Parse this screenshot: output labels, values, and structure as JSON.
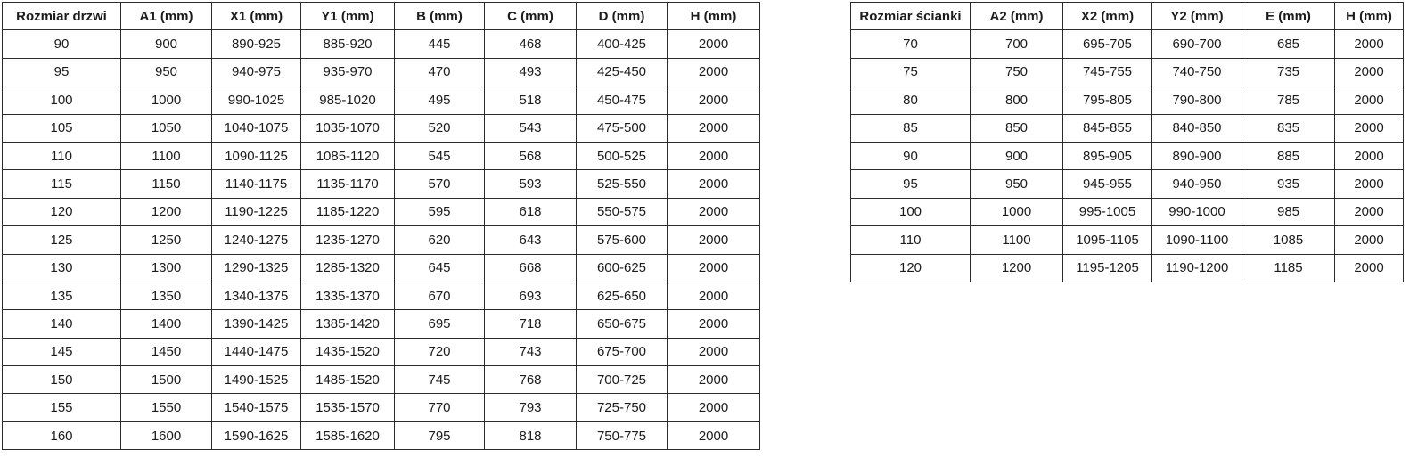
{
  "chart_data": [
    {
      "type": "table",
      "name": "door-size-table",
      "columns": [
        "Rozmiar drzwi",
        "A1 (mm)",
        "X1 (mm)",
        "Y1 (mm)",
        "B (mm)",
        "C (mm)",
        "D (mm)",
        "H (mm)"
      ],
      "rows": [
        [
          "90",
          "900",
          "890-925",
          "885-920",
          "445",
          "468",
          "400-425",
          "2000"
        ],
        [
          "95",
          "950",
          "940-975",
          "935-970",
          "470",
          "493",
          "425-450",
          "2000"
        ],
        [
          "100",
          "1000",
          "990-1025",
          "985-1020",
          "495",
          "518",
          "450-475",
          "2000"
        ],
        [
          "105",
          "1050",
          "1040-1075",
          "1035-1070",
          "520",
          "543",
          "475-500",
          "2000"
        ],
        [
          "110",
          "1100",
          "1090-1125",
          "1085-1120",
          "545",
          "568",
          "500-525",
          "2000"
        ],
        [
          "115",
          "1150",
          "1140-1175",
          "1135-1170",
          "570",
          "593",
          "525-550",
          "2000"
        ],
        [
          "120",
          "1200",
          "1190-1225",
          "1185-1220",
          "595",
          "618",
          "550-575",
          "2000"
        ],
        [
          "125",
          "1250",
          "1240-1275",
          "1235-1270",
          "620",
          "643",
          "575-600",
          "2000"
        ],
        [
          "130",
          "1300",
          "1290-1325",
          "1285-1320",
          "645",
          "668",
          "600-625",
          "2000"
        ],
        [
          "135",
          "1350",
          "1340-1375",
          "1335-1370",
          "670",
          "693",
          "625-650",
          "2000"
        ],
        [
          "140",
          "1400",
          "1390-1425",
          "1385-1420",
          "695",
          "718",
          "650-675",
          "2000"
        ],
        [
          "145",
          "1450",
          "1440-1475",
          "1435-1520",
          "720",
          "743",
          "675-700",
          "2000"
        ],
        [
          "150",
          "1500",
          "1490-1525",
          "1485-1520",
          "745",
          "768",
          "700-725",
          "2000"
        ],
        [
          "155",
          "1550",
          "1540-1575",
          "1535-1570",
          "770",
          "793",
          "725-750",
          "2000"
        ],
        [
          "160",
          "1600",
          "1590-1625",
          "1585-1620",
          "795",
          "818",
          "750-775",
          "2000"
        ]
      ]
    },
    {
      "type": "table",
      "name": "wall-size-table",
      "columns": [
        "Rozmiar ścianki",
        "A2 (mm)",
        "X2 (mm)",
        "Y2 (mm)",
        "E (mm)",
        "H (mm)"
      ],
      "rows": [
        [
          "70",
          "700",
          "695-705",
          "690-700",
          "685",
          "2000"
        ],
        [
          "75",
          "750",
          "745-755",
          "740-750",
          "735",
          "2000"
        ],
        [
          "80",
          "800",
          "795-805",
          "790-800",
          "785",
          "2000"
        ],
        [
          "85",
          "850",
          "845-855",
          "840-850",
          "835",
          "2000"
        ],
        [
          "90",
          "900",
          "895-905",
          "890-900",
          "885",
          "2000"
        ],
        [
          "95",
          "950",
          "945-955",
          "940-950",
          "935",
          "2000"
        ],
        [
          "100",
          "1000",
          "995-1005",
          "990-1000",
          "985",
          "2000"
        ],
        [
          "110",
          "1100",
          "1095-1105",
          "1090-1100",
          "1085",
          "2000"
        ],
        [
          "120",
          "1200",
          "1195-1205",
          "1190-1200",
          "1185",
          "2000"
        ]
      ]
    }
  ],
  "colors": {
    "background": "#ffffff",
    "border": "#2b2b2b",
    "text": "#1b1b1b"
  }
}
